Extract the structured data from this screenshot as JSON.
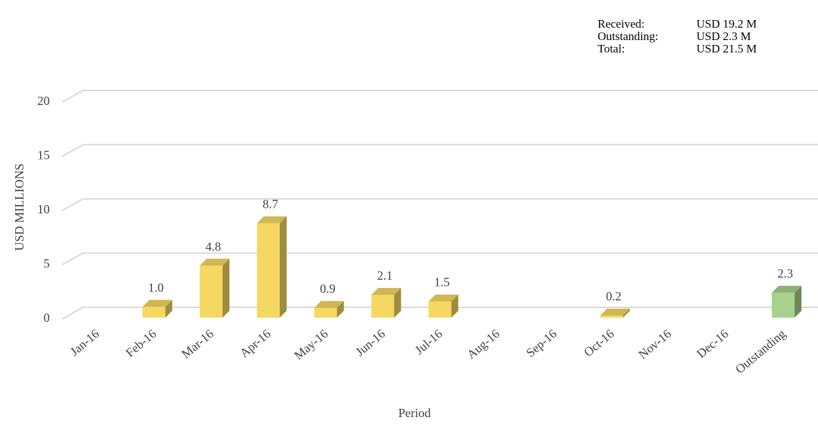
{
  "chart_data": {
    "type": "bar3d",
    "summary": [
      {
        "label": "Received:",
        "value": "USD 19.2 M"
      },
      {
        "label": "Outstanding:",
        "value": "USD 2.3 M"
      },
      {
        "label": "Total:",
        "value": "USD 21.5 M"
      }
    ],
    "y_label": "USD MILLIONS",
    "x_label": "Period",
    "categories": [
      "Jan-16",
      "Feb-16",
      "Mar-16",
      "Apr-16",
      "May-16",
      "Jun-16",
      "Jul-16",
      "Aug-16",
      "Sep-16",
      "Oct-16",
      "Nov-16",
      "Dec-16",
      "Outstanding"
    ],
    "values": [
      null,
      1.0,
      4.8,
      8.7,
      0.9,
      2.1,
      1.5,
      null,
      null,
      0.2,
      null,
      null,
      2.3
    ],
    "value_labels": [
      null,
      "1.0",
      "4.8",
      "8.7",
      "0.9",
      "2.1",
      "1.5",
      null,
      null,
      "0.2",
      null,
      null,
      "2.3"
    ],
    "colors": [
      "#f5d862",
      "#f5d862",
      "#f5d862",
      "#f5d862",
      "#f5d862",
      "#f5d862",
      "#f5d862",
      "#f5d862",
      "#f5d862",
      "#f5d862",
      "#f5d862",
      "#f5d862",
      "#a9d18e"
    ],
    "ylim": [
      0,
      20
    ],
    "yticks": [
      0,
      5,
      10,
      15,
      20
    ],
    "grid": true
  }
}
